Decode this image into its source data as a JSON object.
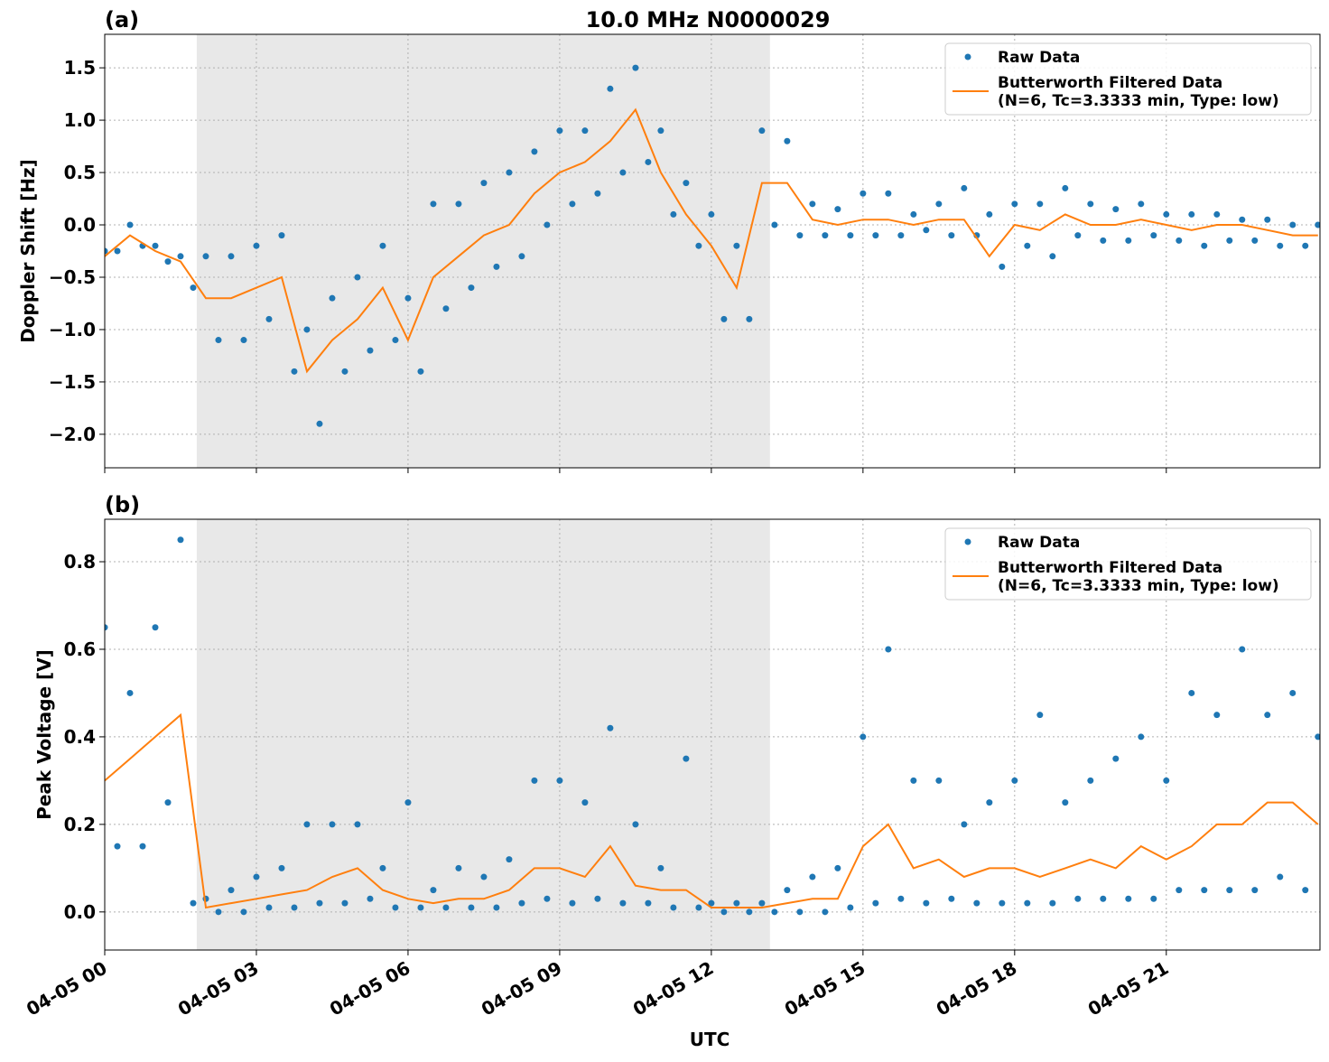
{
  "chart_data": [
    {
      "type": "line",
      "title": "10.0 MHz N0000029",
      "panel_label": "(a)",
      "ylabel": "Doppler Shift [Hz]",
      "xlim": [
        0,
        24.04
      ],
      "xticks": [
        0,
        3,
        6,
        9,
        12,
        15,
        18,
        21
      ],
      "ylim": [
        -2.32,
        1.82
      ],
      "yticks": [
        {
          "value": -2.0,
          "label": "−2.0"
        },
        {
          "value": -1.5,
          "label": "−1.5"
        },
        {
          "value": -1.0,
          "label": "−1.0"
        },
        {
          "value": -0.5,
          "label": "−0.5"
        },
        {
          "value": 0,
          "label": "0.0"
        },
        {
          "value": 0.5,
          "label": "0.5"
        },
        {
          "value": 1.0,
          "label": "1.0"
        },
        {
          "value": 1.5,
          "label": "1.5"
        }
      ],
      "grid": true,
      "legend": "upper right",
      "shade": [
        1.82,
        13.16
      ],
      "series": [
        {
          "name": "Raw Data",
          "style": "scatter",
          "color": "#1f77b4",
          "x": [
            0,
            0.25,
            0.5,
            0.75,
            1,
            1.25,
            1.5,
            1.75,
            2,
            2.25,
            2.5,
            2.75,
            3,
            3.25,
            3.5,
            3.75,
            4,
            4.25,
            4.5,
            4.75,
            5,
            5.25,
            5.5,
            5.75,
            6,
            6.25,
            6.5,
            6.75,
            7,
            7.25,
            7.5,
            7.75,
            8,
            8.25,
            8.5,
            8.75,
            9,
            9.25,
            9.5,
            9.75,
            10,
            10.25,
            10.5,
            10.75,
            11,
            11.25,
            11.5,
            11.75,
            12,
            12.25,
            12.5,
            12.75,
            13,
            13.25,
            13.5,
            13.75,
            14,
            14.25,
            14.5,
            14.75,
            15,
            15.25,
            15.5,
            15.75,
            16,
            16.25,
            16.5,
            16.75,
            17,
            17.25,
            17.5,
            17.75,
            18,
            18.25,
            18.5,
            18.75,
            19,
            19.25,
            19.5,
            19.75,
            20,
            20.25,
            20.5,
            20.75,
            21,
            21.25,
            21.5,
            21.75,
            22,
            22.25,
            22.5,
            22.75,
            23,
            23.25,
            23.5,
            23.75,
            24
          ],
          "values": [
            -0.25,
            -0.25,
            0.0,
            -0.2,
            -0.2,
            -0.35,
            -0.3,
            -0.6,
            -0.3,
            -1.1,
            -0.3,
            -1.1,
            -0.2,
            -0.9,
            -0.1,
            -1.4,
            -1.0,
            -1.9,
            -0.7,
            -1.4,
            -0.5,
            -1.2,
            -0.2,
            -1.1,
            -0.7,
            -1.4,
            0.2,
            -0.8,
            0.2,
            -0.6,
            0.4,
            -0.4,
            0.5,
            -0.3,
            0.7,
            0.0,
            0.9,
            0.2,
            0.9,
            0.3,
            1.3,
            0.5,
            1.5,
            0.6,
            0.9,
            0.1,
            0.4,
            -0.2,
            0.1,
            -0.9,
            -0.2,
            -0.9,
            0.9,
            0.0,
            0.8,
            -0.1,
            0.2,
            -0.1,
            0.15,
            -0.1,
            0.3,
            -0.1,
            0.3,
            -0.1,
            0.1,
            -0.05,
            0.2,
            -0.1,
            0.35,
            -0.1,
            0.1,
            -0.4,
            0.2,
            -0.2,
            0.2,
            -0.3,
            0.35,
            -0.1,
            0.2,
            -0.15,
            0.15,
            -0.15,
            0.2,
            -0.1,
            0.1,
            -0.15,
            0.1,
            -0.2,
            0.1,
            -0.15,
            0.05,
            -0.15,
            0.05,
            -0.2,
            0.0,
            -0.2,
            0.0
          ]
        },
        {
          "name": "Butterworth Filtered Data\n(N=6, Tc=3.3333 min, Type: low)",
          "style": "line",
          "color": "#ff7f0e",
          "x": [
            0,
            0.5,
            1,
            1.5,
            2,
            2.5,
            3,
            3.5,
            4,
            4.5,
            5,
            5.5,
            6,
            6.5,
            7,
            7.5,
            8,
            8.5,
            9,
            9.5,
            10,
            10.5,
            11,
            11.5,
            12,
            12.5,
            13,
            13.5,
            14,
            14.5,
            15,
            15.5,
            16,
            16.5,
            17,
            17.5,
            18,
            18.5,
            19,
            19.5,
            20,
            20.5,
            21,
            21.5,
            22,
            22.5,
            23,
            23.5,
            24
          ],
          "values": [
            -0.3,
            -0.1,
            -0.25,
            -0.35,
            -0.7,
            -0.7,
            -0.6,
            -0.5,
            -1.4,
            -1.1,
            -0.9,
            -0.6,
            -1.1,
            -0.5,
            -0.3,
            -0.1,
            0.0,
            0.3,
            0.5,
            0.6,
            0.8,
            1.1,
            0.5,
            0.1,
            -0.2,
            -0.6,
            0.4,
            0.4,
            0.05,
            0.0,
            0.05,
            0.05,
            0.0,
            0.05,
            0.05,
            -0.3,
            0.0,
            -0.05,
            0.1,
            0.0,
            0.0,
            0.05,
            0.0,
            -0.05,
            0.0,
            0.0,
            -0.05,
            -0.1,
            -0.1
          ]
        }
      ]
    },
    {
      "type": "line",
      "panel_label": "(b)",
      "ylabel": "Peak Voltage [V]",
      "xlabel": "UTC",
      "xlim": [
        0,
        24.04
      ],
      "xticks": [
        {
          "value": 0,
          "label": "04-05 00"
        },
        {
          "value": 3,
          "label": "04-05 03"
        },
        {
          "value": 6,
          "label": "04-05 06"
        },
        {
          "value": 9,
          "label": "04-05 09"
        },
        {
          "value": 12,
          "label": "04-05 12"
        },
        {
          "value": 15,
          "label": "04-05 15"
        },
        {
          "value": 18,
          "label": "04-05 18"
        },
        {
          "value": 21,
          "label": "04-05 21"
        }
      ],
      "ylim": [
        -0.087,
        0.897
      ],
      "yticks": [
        {
          "value": 0,
          "label": "0.0"
        },
        {
          "value": 0.2,
          "label": "0.2"
        },
        {
          "value": 0.4,
          "label": "0.4"
        },
        {
          "value": 0.6,
          "label": "0.6"
        },
        {
          "value": 0.8,
          "label": "0.8"
        }
      ],
      "grid": true,
      "legend": "upper right",
      "shade": [
        1.82,
        13.16
      ],
      "series": [
        {
          "name": "Raw Data",
          "style": "scatter",
          "color": "#1f77b4",
          "x": [
            0,
            0.25,
            0.5,
            0.75,
            1,
            1.25,
            1.5,
            1.75,
            2,
            2.25,
            2.5,
            2.75,
            3,
            3.25,
            3.5,
            3.75,
            4,
            4.25,
            4.5,
            4.75,
            5,
            5.25,
            5.5,
            5.75,
            6,
            6.25,
            6.5,
            6.75,
            7,
            7.25,
            7.5,
            7.75,
            8,
            8.25,
            8.5,
            8.75,
            9,
            9.25,
            9.5,
            9.75,
            10,
            10.25,
            10.5,
            10.75,
            11,
            11.25,
            11.5,
            11.75,
            12,
            12.25,
            12.5,
            12.75,
            13,
            13.25,
            13.5,
            13.75,
            14,
            14.25,
            14.5,
            14.75,
            15,
            15.25,
            15.5,
            15.75,
            16,
            16.25,
            16.5,
            16.75,
            17,
            17.25,
            17.5,
            17.75,
            18,
            18.25,
            18.5,
            18.75,
            19,
            19.25,
            19.5,
            19.75,
            20,
            20.25,
            20.5,
            20.75,
            21,
            21.25,
            21.5,
            21.75,
            22,
            22.25,
            22.5,
            22.75,
            23,
            23.25,
            23.5,
            23.75,
            24
          ],
          "values": [
            0.65,
            0.15,
            0.5,
            0.15,
            0.65,
            0.25,
            0.85,
            0.02,
            0.03,
            0.0,
            0.05,
            0.0,
            0.08,
            0.01,
            0.1,
            0.01,
            0.2,
            0.02,
            0.2,
            0.02,
            0.2,
            0.03,
            0.1,
            0.01,
            0.25,
            0.01,
            0.05,
            0.01,
            0.1,
            0.01,
            0.08,
            0.01,
            0.12,
            0.02,
            0.3,
            0.03,
            0.3,
            0.02,
            0.25,
            0.03,
            0.42,
            0.02,
            0.2,
            0.02,
            0.1,
            0.01,
            0.35,
            0.01,
            0.02,
            0.0,
            0.02,
            0.0,
            0.02,
            0.0,
            0.05,
            0.0,
            0.08,
            0.0,
            0.1,
            0.01,
            0.4,
            0.02,
            0.6,
            0.03,
            0.3,
            0.02,
            0.3,
            0.03,
            0.2,
            0.02,
            0.25,
            0.02,
            0.3,
            0.02,
            0.45,
            0.02,
            0.25,
            0.03,
            0.3,
            0.03,
            0.35,
            0.03,
            0.4,
            0.03,
            0.3,
            0.05,
            0.5,
            0.05,
            0.45,
            0.05,
            0.6,
            0.05,
            0.45,
            0.08,
            0.5,
            0.05,
            0.4
          ]
        },
        {
          "name": "Butterworth Filtered Data\n(N=6, Tc=3.3333 min, Type: low)",
          "style": "line",
          "color": "#ff7f0e",
          "x": [
            0,
            0.5,
            1,
            1.5,
            2,
            2.5,
            3,
            3.5,
            4,
            4.5,
            5,
            5.5,
            6,
            6.5,
            7,
            7.5,
            8,
            8.5,
            9,
            9.5,
            10,
            10.5,
            11,
            11.5,
            12,
            12.5,
            13,
            13.5,
            14,
            14.5,
            15,
            15.5,
            16,
            16.5,
            17,
            17.5,
            18,
            18.5,
            19,
            19.5,
            20,
            20.5,
            21,
            21.5,
            22,
            22.5,
            23,
            23.5,
            24
          ],
          "values": [
            0.3,
            0.35,
            0.4,
            0.45,
            0.01,
            0.02,
            0.03,
            0.04,
            0.05,
            0.08,
            0.1,
            0.05,
            0.03,
            0.02,
            0.03,
            0.03,
            0.05,
            0.1,
            0.1,
            0.08,
            0.15,
            0.06,
            0.05,
            0.05,
            0.01,
            0.01,
            0.01,
            0.02,
            0.03,
            0.03,
            0.15,
            0.2,
            0.1,
            0.12,
            0.08,
            0.1,
            0.1,
            0.08,
            0.1,
            0.12,
            0.1,
            0.15,
            0.12,
            0.15,
            0.2,
            0.2,
            0.25,
            0.25,
            0.2
          ]
        }
      ]
    }
  ]
}
